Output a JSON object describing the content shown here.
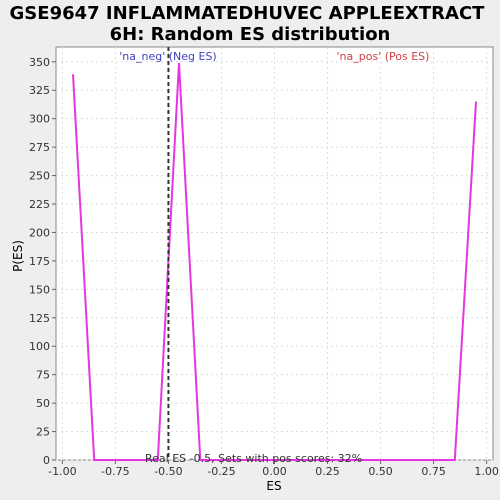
{
  "chart_data": {
    "type": "line",
    "title_line1": "GSE9647 INFLAMMATEDHUVEC APPLEEXTRACT",
    "title_line2": "6H: Random ES distribution",
    "xlabel": "ES",
    "ylabel": "P(ES)",
    "xlim": [
      -1.03,
      1.03
    ],
    "ylim": [
      0,
      363
    ],
    "x_ticks": [
      -1.0,
      -0.75,
      -0.5,
      -0.25,
      0.0,
      0.25,
      0.5,
      0.75,
      1.0
    ],
    "x_tick_labels": [
      "-1.00",
      "-0.75",
      "-0.50",
      "-0.25",
      "0.00",
      "0.25",
      "0.50",
      "0.75",
      "1.00"
    ],
    "y_ticks": [
      0,
      25,
      50,
      75,
      100,
      125,
      150,
      175,
      200,
      225,
      250,
      275,
      300,
      325,
      350
    ],
    "y_tick_labels": [
      "0",
      "25",
      "50",
      "75",
      "100",
      "125",
      "150",
      "175",
      "200",
      "225",
      "250",
      "275",
      "300",
      "325",
      "350"
    ],
    "grid": true,
    "series": [
      {
        "color": "#e535e5",
        "x": [
          -0.95,
          -0.85,
          -0.55,
          -0.45,
          -0.35,
          0.85,
          0.95
        ],
        "y": [
          339,
          0,
          0,
          349,
          0,
          0,
          315
        ]
      }
    ],
    "vline": {
      "x": -0.5,
      "color": "#333333"
    },
    "annotations": {
      "neg_label": "'na_neg' (Neg ES)",
      "neg_color": "#4040c0",
      "pos_label": "'na_pos' (Pos ES)",
      "pos_color": "#d04040",
      "bottom_text": "Real ES -0.5, Sets with pos scores: 32%"
    }
  }
}
